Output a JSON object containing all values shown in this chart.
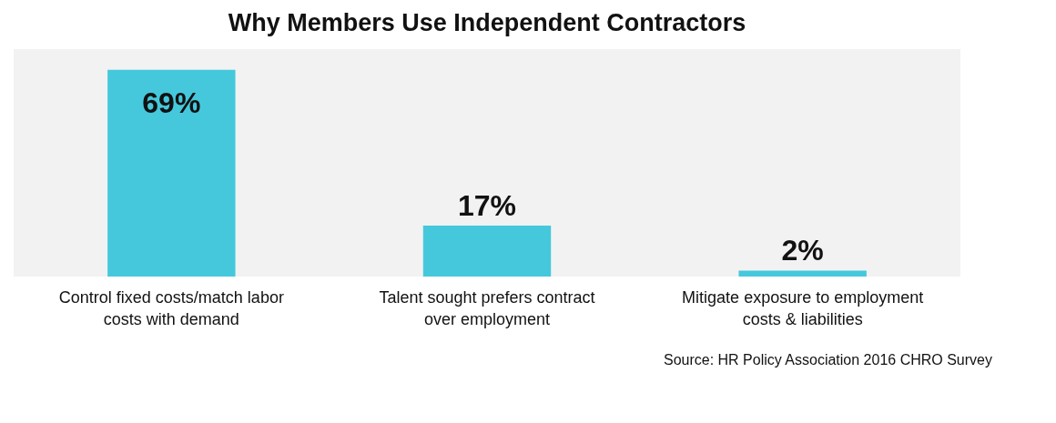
{
  "chart_data": {
    "type": "bar",
    "title": "Why Members Use Independent Contractors",
    "categories": [
      "Control fixed costs/match labor costs with demand",
      "Talent sought prefers contract over employment",
      "Mitigate exposure to employment costs & liabilities"
    ],
    "values": [
      69,
      17,
      2
    ],
    "value_labels": [
      "69%",
      "17%",
      "2%"
    ],
    "color": "#45c8dc",
    "grid": false,
    "annotations": [
      "Source: HR Policy Association 2016 CHRO Survey"
    ]
  }
}
